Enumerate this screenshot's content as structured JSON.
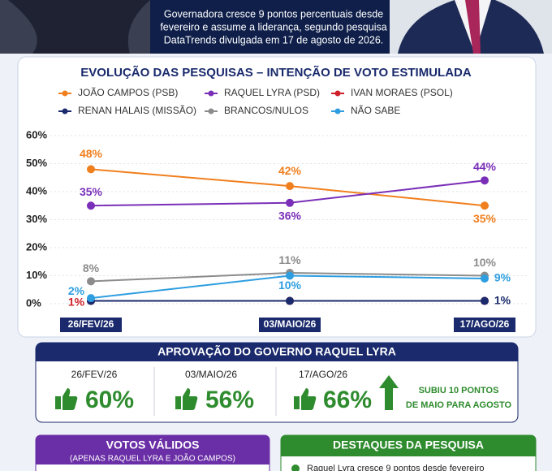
{
  "header": {
    "text": [
      "Governadora cresce 9 pontos percentuais desde",
      "fevereiro e assume a liderança, segundo pesquisa",
      "DataTrends divulgada em 17 de agosto de 2026."
    ]
  },
  "chart_data": {
    "type": "line",
    "title": "EVOLUÇÃO DAS PESQUISAS – INTENÇÃO DE VOTO ESTIMULADA",
    "categories": [
      "26/FEV/26",
      "03/MAIO/26",
      "17/AGO/26"
    ],
    "ylim": [
      0,
      60
    ],
    "yticks": [
      {
        "value": 0,
        "label": "0%"
      },
      {
        "value": 10,
        "label": "10%"
      },
      {
        "value": 20,
        "label": "20%"
      },
      {
        "value": 30,
        "label": "30%"
      },
      {
        "value": 40,
        "label": "40%"
      },
      {
        "value": 50,
        "label": "50%"
      },
      {
        "value": 60,
        "label": "60%"
      }
    ],
    "grid": true,
    "series": [
      {
        "name": "JOÃO CAMPOS (PSB)",
        "color": "#f07f1e",
        "values": [
          48,
          42,
          35
        ],
        "value_labels": [
          "48%",
          "42%",
          "35%"
        ]
      },
      {
        "name": "RAQUEL LYRA (PSD)",
        "color": "#7a2fb8",
        "values": [
          35,
          36,
          44
        ],
        "value_labels": [
          "35%",
          "36%",
          "44%"
        ]
      },
      {
        "name": "IVAN MORAES (PSOL)",
        "color": "#d0202a",
        "values": [
          1,
          1,
          1
        ],
        "value_labels": [
          "1%",
          null,
          null
        ]
      },
      {
        "name": "RENAN HALAIS (MISSÃO)",
        "color": "#1a2a6c",
        "values": [
          1,
          1,
          1
        ],
        "value_labels": [
          null,
          null,
          "1%"
        ]
      },
      {
        "name": "BRANCOS/NULOS",
        "color": "#8c8c8c",
        "values": [
          8,
          11,
          10
        ],
        "value_labels": [
          "8%",
          "11%",
          "10%"
        ]
      },
      {
        "name": "NÃO SABE",
        "color": "#2e9ee0",
        "values": [
          2,
          10,
          9
        ],
        "value_labels": [
          "2%",
          "10%",
          "9%"
        ]
      }
    ]
  },
  "approval": {
    "title": "APROVAÇÃO DO GOVERNO RAQUEL LYRA",
    "items": [
      {
        "date": "26/FEV/26",
        "value": "60%"
      },
      {
        "date": "03/MAIO/26",
        "value": "56%"
      },
      {
        "date": "17/AGO/26",
        "value": "66%"
      }
    ],
    "note": [
      "SUBIU 10 PONTOS",
      "DE MAIO PARA AGOSTO"
    ]
  },
  "valid_votes": {
    "title": "VOTOS VÁLIDOS",
    "subtitle": "(APENAS RAQUEL LYRA E JOÃO CAMPOS)"
  },
  "highlights": {
    "title": "DESTAQUES DA PESQUISA",
    "items": [
      "Raquel Lyra cresce 9 pontos desde fevereiro"
    ]
  }
}
